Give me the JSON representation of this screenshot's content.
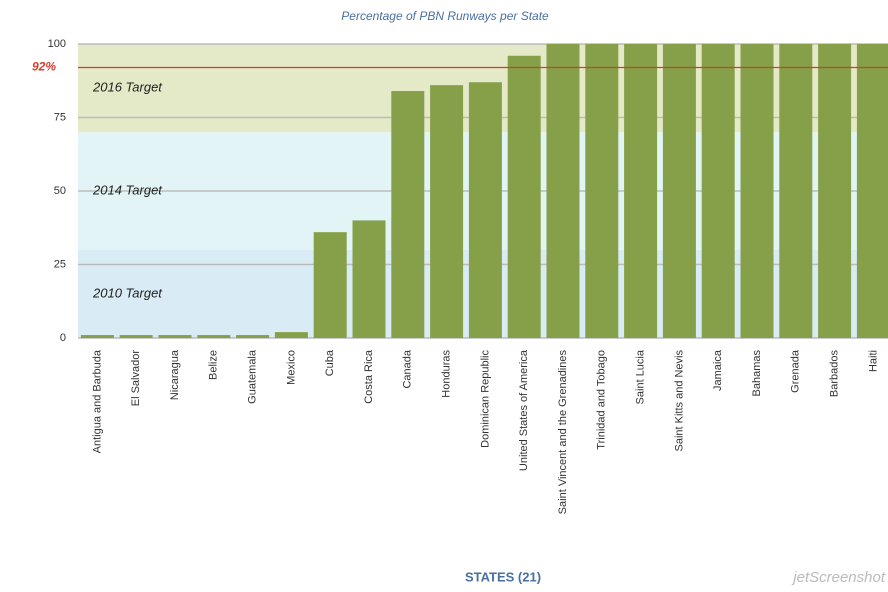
{
  "chart_data": {
    "type": "bar",
    "title": "Percentage of PBN Runways per State",
    "x_label": "STATES (21)",
    "categories": [
      "Antigua and Barbuda",
      "El Salvador",
      "Nicaragua",
      "Belize",
      "Guatemala",
      "Mexico",
      "Cuba",
      "Costa Rica",
      "Canada",
      "Honduras",
      "Dominican Republic",
      "United States of America",
      "Saint Vincent and the Grenadines",
      "Trinidad and Tobago",
      "Saint Lucia",
      "Saint Kitts and Nevis",
      "Jamaica",
      "Bahamas",
      "Grenada",
      "Barbados",
      "Haiti"
    ],
    "values": [
      1,
      1,
      1,
      1,
      1,
      2,
      36,
      40,
      84,
      86,
      87,
      96,
      100,
      100,
      100,
      100,
      100,
      100,
      100,
      100,
      100
    ],
    "color": "#86a04a",
    "ylim": [
      0,
      100
    ],
    "yticks": [
      0,
      25,
      50,
      75,
      100
    ],
    "grid": true,
    "bands": [
      {
        "label": "2010 Target",
        "from": 0,
        "to": 30,
        "color": "#d9ecf5"
      },
      {
        "label": "2014 Target",
        "from": 30,
        "to": 70,
        "color": "#e2f4f6"
      },
      {
        "label": "2016 Target",
        "from": 70,
        "to": 100,
        "color": "#e4e9c8"
      }
    ],
    "reference_line": {
      "value": 92,
      "label": "92%",
      "color": "#d93a2b"
    },
    "watermark": "jetScreenshot"
  }
}
